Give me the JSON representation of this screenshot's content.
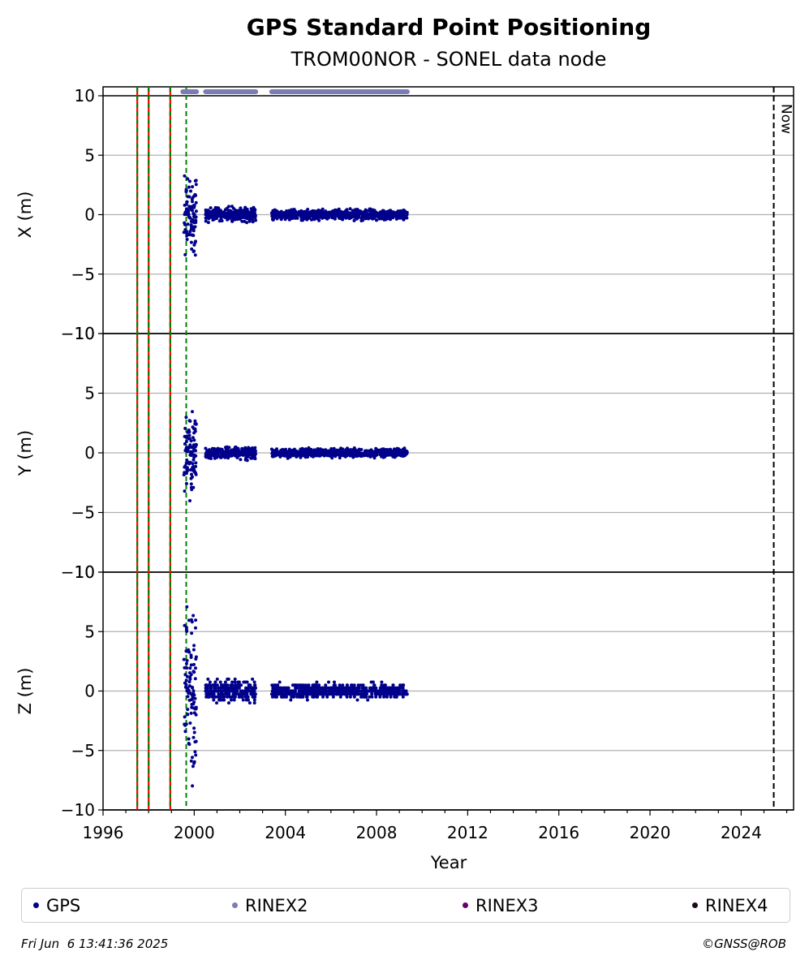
{
  "chart_data": {
    "type": "scatter",
    "title": "GPS Standard Point Positioning",
    "subtitle": "TROM00NOR - SONEL data node",
    "xlabel": "Year",
    "xlim": [
      1996,
      2026.3
    ],
    "xticks": [
      1996,
      2000,
      2004,
      2008,
      2012,
      2016,
      2020,
      2024
    ],
    "grid": "horizontal",
    "legend_placement": "bottom",
    "colors": {
      "gps": "#00008b",
      "rinex2": "#7b7bb5",
      "rinex3": "#6a006a",
      "rinex4": "#1a0a1a",
      "event_red": "#ff0000",
      "event_green": "#008000",
      "now_line": "#000000"
    },
    "panels": [
      {
        "name": "X",
        "ylabel": "X (m)",
        "ylim": [
          -10,
          10
        ],
        "yticks": [
          -10,
          -5,
          0,
          5,
          10
        ],
        "ytick_labels": [
          "−10",
          "−5",
          "0",
          "5",
          "10"
        ]
      },
      {
        "name": "Y",
        "ylabel": "Y (m)",
        "ylim": [
          -10,
          10
        ],
        "yticks": [
          -10,
          -5,
          0,
          5,
          10
        ],
        "ytick_labels": [
          "−10",
          "−5",
          "0",
          "5",
          "10"
        ]
      },
      {
        "name": "Z",
        "ylabel": "Z (m)",
        "ylim": [
          -10,
          10
        ],
        "yticks": [
          -10,
          -5,
          0,
          5,
          10
        ],
        "ytick_labels": [
          "−10",
          "−5",
          "0",
          "5",
          "10"
        ]
      }
    ],
    "event_lines": [
      {
        "x": 1997.5,
        "style": "red-green-dashed"
      },
      {
        "x": 1998.0,
        "style": "red-green-dashed"
      },
      {
        "x": 1998.95,
        "style": "red-green-dashed"
      },
      {
        "x": 1999.65,
        "style": "green-dashed"
      }
    ],
    "now_line": {
      "x": 2025.43,
      "label": "Now"
    },
    "rinex2_availability": [
      [
        1999.5,
        2000.1
      ],
      [
        2000.5,
        2002.7
      ],
      [
        2003.4,
        2009.35
      ]
    ],
    "series": [
      {
        "name": "GPS",
        "segments": [
          {
            "x_range": [
              1999.55,
              2000.1
            ],
            "x_spread_m": 4.5,
            "y_spread_m": 4.5,
            "z_spread_m": 9.5
          },
          {
            "x_range": [
              2000.5,
              2002.7
            ],
            "x_spread_m": 0.8,
            "y_spread_m": 0.7,
            "z_spread_m": 1.2
          },
          {
            "x_range": [
              2003.4,
              2009.35
            ],
            "x_spread_m": 0.6,
            "y_spread_m": 0.5,
            "z_spread_m": 0.8
          }
        ]
      }
    ]
  },
  "legend": {
    "items": [
      {
        "label": "GPS",
        "color": "#00008b"
      },
      {
        "label": "RINEX2",
        "color": "#7b7bb5"
      },
      {
        "label": "RINEX3",
        "color": "#6a006a"
      },
      {
        "label": "RINEX4",
        "color": "#1a0a1a"
      }
    ]
  },
  "footer": {
    "timestamp": "Fri Jun  6 13:41:36 2025",
    "copyright": "©GNSS@ROB"
  }
}
